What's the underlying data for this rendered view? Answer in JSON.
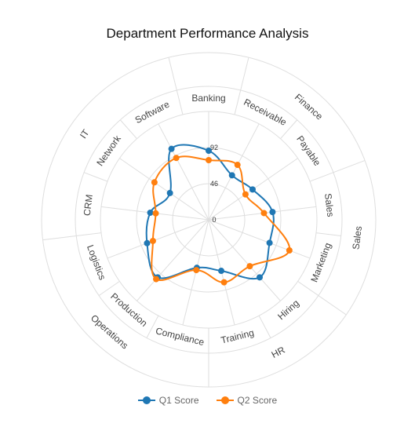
{
  "chart_data": {
    "type": "radar",
    "title": "Department Performance Analysis",
    "radial_ticks": [
      "0",
      "46",
      "92"
    ],
    "rmax": 138,
    "categories": [
      "Banking",
      "Receivable",
      "Payable",
      "Sales",
      "Marketing",
      "Hiring",
      "Training",
      "Compliance",
      "Production",
      "Logistics",
      "CRM",
      "Network",
      "Software"
    ],
    "groups": [
      {
        "label": "Finance",
        "members": [
          "Receivable",
          "Payable"
        ]
      },
      {
        "label": "Sales",
        "members": [
          "Sales",
          "Marketing"
        ]
      },
      {
        "label": "HR",
        "members": [
          "Hiring",
          "Training"
        ]
      },
      {
        "label": "Operations",
        "members": [
          "Compliance",
          "Production",
          "Logistics"
        ]
      },
      {
        "label": "IT",
        "members": [
          "CRM",
          "Network",
          "Software"
        ]
      }
    ],
    "series": [
      {
        "name": "Q1 Score",
        "color": "#1f77b4",
        "values": [
          88,
          64,
          68,
          82,
          83,
          98,
          67,
          63,
          98,
          84,
          75,
          60,
          102
        ]
      },
      {
        "name": "Q2 Score",
        "color": "#ff7f0e",
        "values": [
          76,
          79,
          57,
          71,
          110,
          79,
          82,
          66,
          101,
          76,
          68,
          84,
          89
        ]
      }
    ],
    "grid": true,
    "legend_position": "bottom"
  }
}
